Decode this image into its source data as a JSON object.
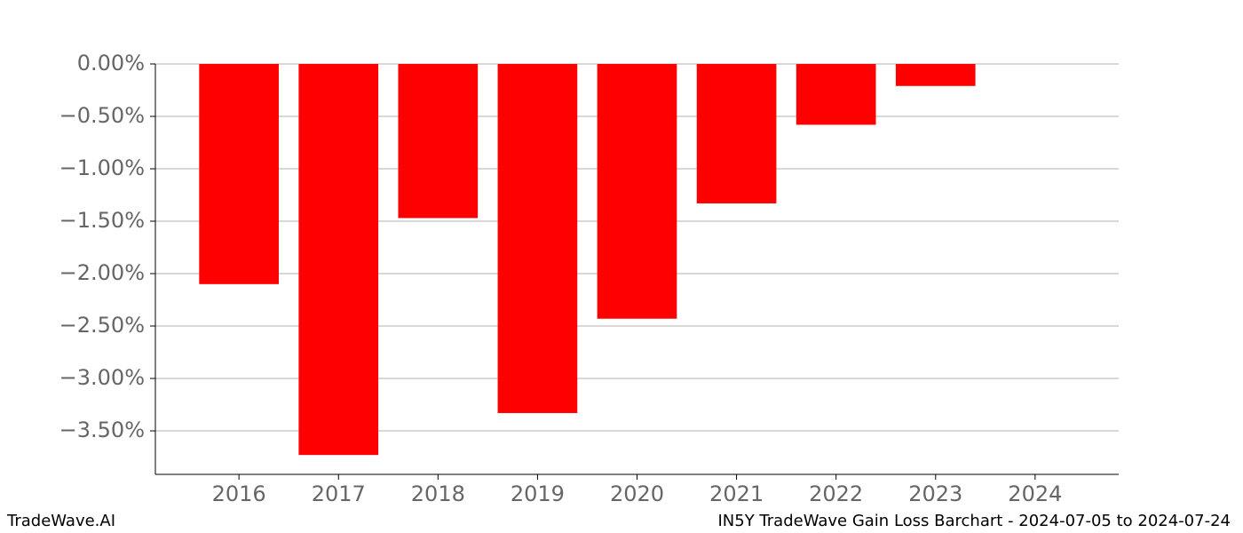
{
  "chart_data": {
    "type": "bar",
    "categories": [
      "2016",
      "2017",
      "2018",
      "2019",
      "2020",
      "2021",
      "2022",
      "2023",
      "2024"
    ],
    "values": [
      -2.1,
      -3.73,
      -1.47,
      -3.33,
      -2.43,
      -1.33,
      -0.58,
      -0.21,
      null
    ],
    "color": "#ff0000",
    "ylim": [
      -3.915,
      0
    ],
    "yticks": [
      {
        "value": 0,
        "label": "0.00%"
      },
      {
        "value": -0.5,
        "label": "−0.50%"
      },
      {
        "value": -1,
        "label": "−1.00%"
      },
      {
        "value": -1.5,
        "label": "−1.50%"
      },
      {
        "value": -2,
        "label": "−2.00%"
      },
      {
        "value": -2.5,
        "label": "−2.50%"
      },
      {
        "value": -3,
        "label": "−3.00%"
      },
      {
        "value": -3.5,
        "label": "−3.50%"
      }
    ],
    "grid": true,
    "watermark": "TradeWave.AI",
    "caption": "IN5Y TradeWave Gain Loss Barchart - 2024-07-05 to 2024-07-24"
  }
}
